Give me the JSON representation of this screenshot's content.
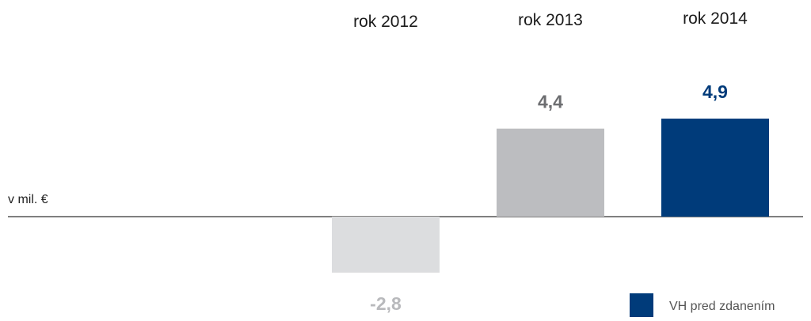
{
  "chart_data": {
    "type": "bar",
    "categories": [
      "rok 2012",
      "rok 2013",
      "rok 2014"
    ],
    "series": [
      {
        "name": "VH pred zdanením",
        "values": [
          -2.8,
          4.4,
          4.9
        ],
        "value_labels": [
          "-2,8",
          "4,4",
          "4,9"
        ]
      }
    ],
    "unit_label": "v mil. €",
    "bar_colors": [
      "#dcdddf",
      "#bcbdc0",
      "#003b7a"
    ],
    "value_label_colors": [
      "#b8b9bc",
      "#6d6e71",
      "#003b7a"
    ],
    "legend_color": "#003b7a",
    "legend_position": "bottom-right",
    "grid": false
  }
}
